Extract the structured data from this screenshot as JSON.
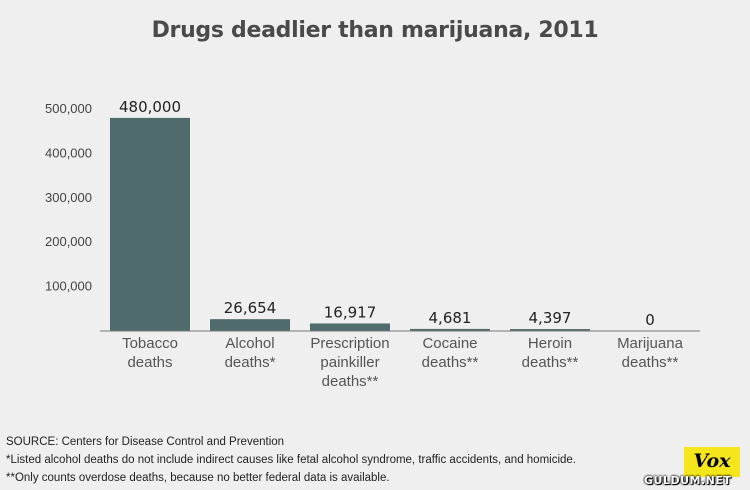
{
  "title": "Drugs deadlier than marijuana, 2011",
  "chart_data": {
    "type": "bar",
    "title": "Drugs deadlier than marijuana, 2011",
    "categories": [
      [
        "Tobacco",
        "deaths"
      ],
      [
        "Alcohol",
        "deaths*"
      ],
      [
        "Prescription",
        "painkiller",
        "deaths**"
      ],
      [
        "Cocaine",
        "deaths**"
      ],
      [
        "Heroin",
        "deaths**"
      ],
      [
        "Marijuana",
        "deaths**"
      ]
    ],
    "values": [
      480000,
      26654,
      16917,
      4681,
      4397,
      0
    ],
    "data_labels": [
      "480,000",
      "26,654",
      "16,917",
      "4,681",
      "4,397",
      "0"
    ],
    "y_ticks": [
      100000,
      200000,
      300000,
      400000,
      500000
    ],
    "y_tick_labels": [
      "100,000",
      "200,000",
      "300,000",
      "400,000",
      "500,000"
    ],
    "ylim": [
      0,
      500000
    ],
    "xlabel": "",
    "ylabel": "",
    "grid": false,
    "bar_color": "#4f6b6b",
    "axis_color": "#777777"
  },
  "footnotes": {
    "source": "SOURCE: Centers for Disease Control and Prevention",
    "note1": "*Listed alcohol deaths do not include indirect causes like fetal alcohol syndrome, traffic accidents, and homicide.",
    "note2": "**Only counts overdose deaths, because no better federal data is available."
  },
  "logo": {
    "text": "Vox",
    "color": "#f5e51b"
  },
  "watermark": "GULDUM.NET"
}
